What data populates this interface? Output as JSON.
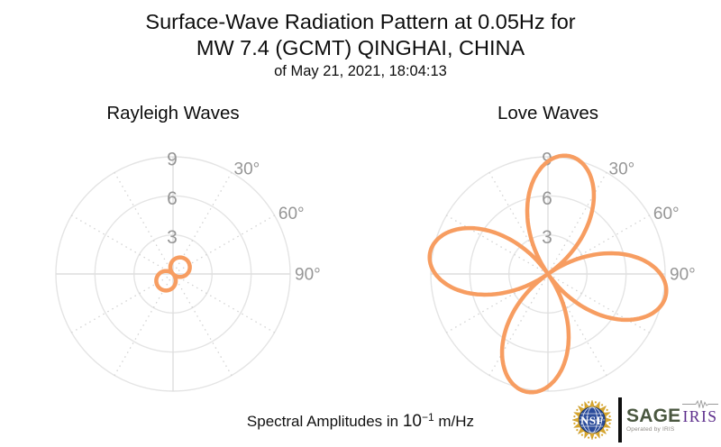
{
  "title": {
    "line1": "Surface-Wave Radiation Pattern at 0.05Hz for",
    "line2": "MW 7.4 (GCMT) QINGHAI, CHINA",
    "line3": "of May 21, 2021, 18:04:13"
  },
  "footer": {
    "prefix": "Spectral Amplitudes in ",
    "power_base": "10",
    "power_exponent": "−1",
    "suffix": " m/Hz"
  },
  "colors": {
    "curve": "#F79D61",
    "grid_circle": "#E4E4E4",
    "grid_axis": "#DEDEDE",
    "grid_dotted": "#CFCFCF",
    "tick_label": "#969696",
    "center_dot": "#8C8C8C",
    "sage_green": "#4A5740",
    "iris_purple": "#5D2E8C",
    "nsf_gold": "#D9A72E",
    "nsf_gold_dark": "#B8860B",
    "nsf_blue": "#2B4C9B",
    "nsf_blue_dark": "#16305F",
    "squiggle_gray": "#9A9A9A"
  },
  "chart_data": [
    {
      "type": "line",
      "projection": "polar",
      "title": "Rayleigh Waves",
      "r_ticks": [
        3,
        6,
        9
      ],
      "r_tick_labels": [
        "3",
        "6",
        "9"
      ],
      "angle_ticks_deg": [
        30,
        60,
        90
      ],
      "angle_tick_labels": [
        "30°",
        "60°",
        "90°"
      ],
      "r_axis_max": 9,
      "angle_zero": "north",
      "angle_direction": "clockwise",
      "grid_spoke_step_deg": 30,
      "pattern": {
        "formula": "r = A·|cos(n·(θ−θ0))|",
        "A": 1.5,
        "n": 1,
        "theta0_deg": 46,
        "lobe_azimuths_deg": [
          46,
          226
        ]
      },
      "samples_theta_deg": [
        0,
        15,
        30,
        45,
        60,
        75,
        90,
        105,
        120,
        135,
        150,
        165,
        180,
        195,
        210,
        225,
        240,
        255,
        270,
        285,
        300,
        315,
        330,
        345
      ],
      "samples_r": [
        1.04,
        1.29,
        1.44,
        1.5,
        1.46,
        1.31,
        1.08,
        0.77,
        0.41,
        0.03,
        0.36,
        0.73,
        1.04,
        1.29,
        1.44,
        1.5,
        1.46,
        1.31,
        1.08,
        0.77,
        0.41,
        0.03,
        0.36,
        0.73
      ]
    },
    {
      "type": "line",
      "projection": "polar",
      "title": "Love Waves",
      "r_ticks": [
        3,
        6,
        9
      ],
      "r_tick_labels": [
        "3",
        "6",
        "9"
      ],
      "angle_ticks_deg": [
        30,
        60,
        90
      ],
      "angle_tick_labels": [
        "30°",
        "60°",
        "90°"
      ],
      "r_axis_max": 9,
      "angle_zero": "north",
      "angle_direction": "clockwise",
      "grid_spoke_step_deg": 30,
      "pattern": {
        "formula": "r = A·|cos(n·(θ−θ0))|",
        "A": 9.2,
        "n": 2,
        "theta0_deg": 10,
        "lobe_azimuths_deg": [
          10,
          100,
          190,
          280
        ]
      },
      "samples_theta_deg": [
        0,
        15,
        30,
        45,
        60,
        75,
        90,
        105,
        120,
        135,
        150,
        165,
        180,
        195,
        210,
        225,
        240,
        255,
        270,
        285,
        300,
        315,
        330,
        345
      ],
      "samples_r": [
        8.6,
        9.1,
        7.0,
        3.1,
        1.6,
        5.9,
        8.6,
        9.1,
        7.0,
        3.1,
        1.6,
        5.9,
        8.6,
        9.1,
        7.0,
        3.1,
        1.6,
        5.9,
        8.6,
        9.1,
        7.0,
        3.1,
        1.6,
        5.9
      ]
    }
  ],
  "logos": {
    "nsf_label": "NSF",
    "sage_label": "SAGE",
    "sage_sub": "Operated by IRIS",
    "iris_label": "IRIS"
  }
}
